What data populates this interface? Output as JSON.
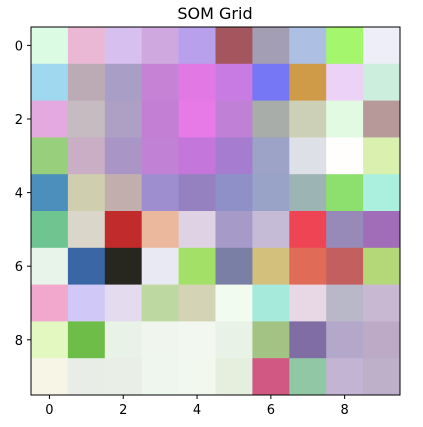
{
  "chart_data": {
    "type": "heatmap",
    "title": "SOM Grid",
    "xlabel": "",
    "ylabel": "",
    "rows": 10,
    "cols": 10,
    "xlim": [
      -0.5,
      9.5
    ],
    "ylim": [
      9.5,
      -0.5
    ],
    "x_ticks": [
      0,
      2,
      4,
      6,
      8
    ],
    "x_tick_labels": [
      "0",
      "2",
      "4",
      "6",
      "8"
    ],
    "y_ticks": [
      0,
      2,
      4,
      6,
      8
    ],
    "y_tick_labels": [
      "0",
      "2",
      "4",
      "6",
      "8"
    ],
    "grid": false,
    "cells": [
      [
        "#dbfce3",
        "#eab8d4",
        "#d7c0ef",
        "#cfa8e0",
        "#b8a0ec",
        "#a4565f",
        "#a49eb4",
        "#adbfe2",
        "#a4f66c",
        "#eeeef8"
      ],
      [
        "#a0d8f0",
        "#bcaab4",
        "#a99ec6",
        "#c683d6",
        "#e278e4",
        "#c97be4",
        "#7677f4",
        "#d09b48",
        "#ebd2f6",
        "#cbeedd"
      ],
      [
        "#e4aadf",
        "#c5bbc0",
        "#ae9fc4",
        "#c27fd3",
        "#e77ae6",
        "#c080d5",
        "#a8adaa",
        "#ccd0b6",
        "#e2fae2",
        "#b8999a"
      ],
      [
        "#98cf7c",
        "#c9aec6",
        "#a996c7",
        "#c181d4",
        "#c576da",
        "#a57ccf",
        "#9da2c7",
        "#dde0e6",
        "#fffefc",
        "#daf0ae"
      ],
      [
        "#4c8fbc",
        "#cfcfaf",
        "#c2afad",
        "#9e8ed0",
        "#9580c0",
        "#9090c8",
        "#99a3c7",
        "#9db4b4",
        "#8de06d",
        "#abefde"
      ],
      [
        "#6fc58f",
        "#dad6c9",
        "#c22b2c",
        "#ebb89e",
        "#e0d2e5",
        "#a59ac8",
        "#c6bbd6",
        "#ef4453",
        "#978ab8",
        "#a26db8"
      ],
      [
        "#e8f4ea",
        "#3a66a5",
        "#272720",
        "#e8e9f2",
        "#a3e068",
        "#7a80a5",
        "#d3c07d",
        "#e06c58",
        "#c45f5f",
        "#b4d878"
      ],
      [
        "#f2a8cd",
        "#d0c8f6",
        "#e4dcee",
        "#bed8a2",
        "#d5d3b5",
        "#f2fbf0",
        "#a6eadb",
        "#e8d8e6",
        "#b8b8c8",
        "#c8b8d2"
      ],
      [
        "#e2f8c0",
        "#6dbd48",
        "#e9f2e6",
        "#f0f6ee",
        "#f2f8f0",
        "#e8f2e6",
        "#a2c384",
        "#7f6da3",
        "#b4a8ca",
        "#bcaac6"
      ],
      [
        "#f6f5e6",
        "#e9ede8",
        "#e9efe6",
        "#eff6ee",
        "#f3f8ee",
        "#e5efde",
        "#d15883",
        "#90c8a6",
        "#c4b4d4",
        "#bdb0c8"
      ]
    ]
  }
}
